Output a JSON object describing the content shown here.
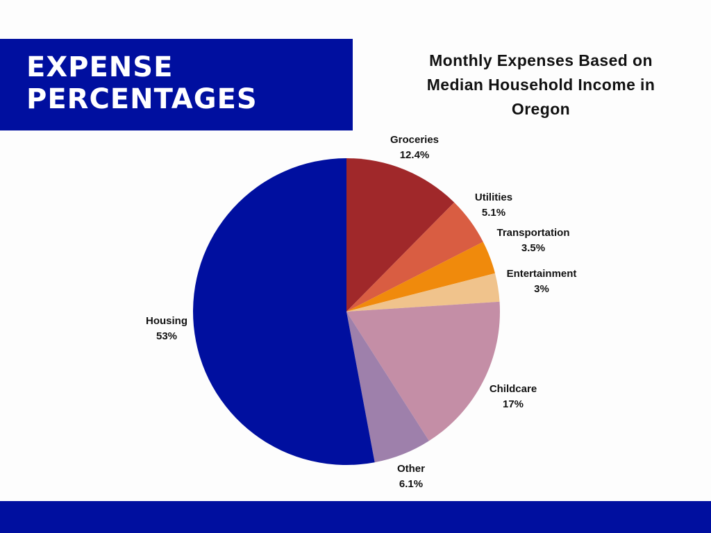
{
  "header": {
    "banner_title_line1": "EXPENSE",
    "banner_title_line2": "PERCENTAGES"
  },
  "colors": {
    "banner": "#000f9f",
    "footer": "#000f9f"
  },
  "chart_data": {
    "type": "pie",
    "title": "Monthly Expenses Based on Median Household Income in Oregon",
    "start_angle_deg": 0,
    "direction": "clockwise",
    "slices": [
      {
        "label": "Groceries",
        "value": 12.4,
        "display": "12.4%",
        "color": "#a0282a"
      },
      {
        "label": "Utilities",
        "value": 5.1,
        "display": "5.1%",
        "color": "#d95d42"
      },
      {
        "label": "Transportation",
        "value": 3.5,
        "display": "3.5%",
        "color": "#f08a0c"
      },
      {
        "label": "Entertainment",
        "value": 3,
        "display": "3%",
        "color": "#f0c38c"
      },
      {
        "label": "Childcare",
        "value": 17,
        "display": "17%",
        "color": "#c48ea6"
      },
      {
        "label": "Other",
        "value": 6.1,
        "display": "6.1%",
        "color": "#9e80ab"
      },
      {
        "label": "Housing",
        "value": 53,
        "display": "53%",
        "color": "#000f9f"
      }
    ]
  }
}
